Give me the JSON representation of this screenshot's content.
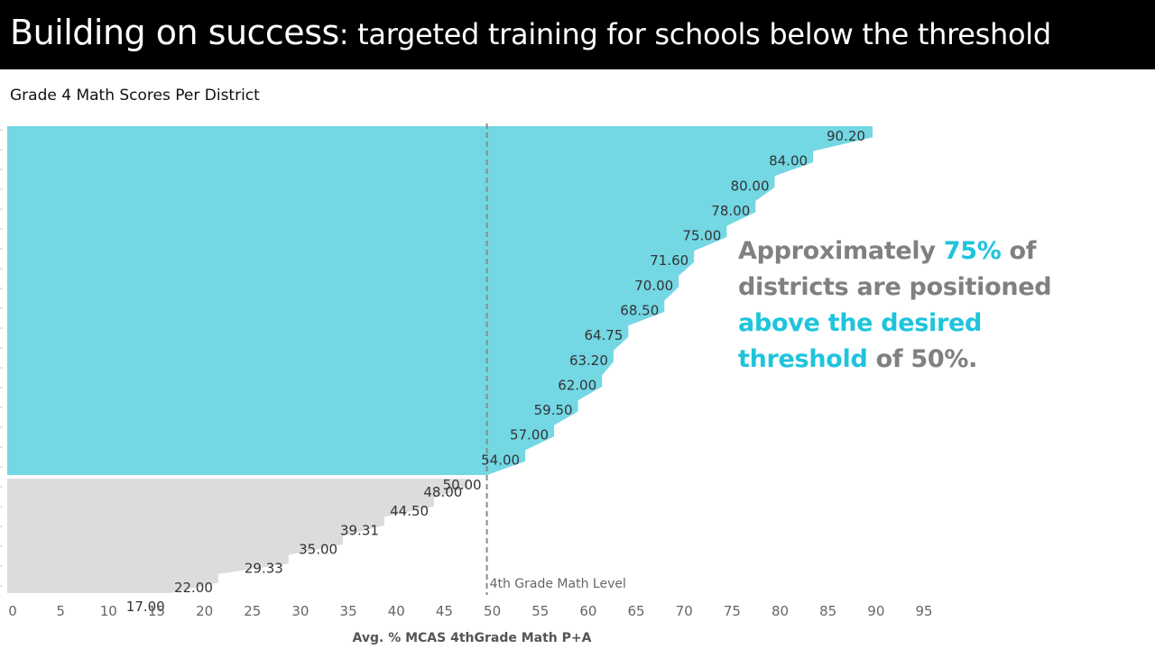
{
  "header": {
    "title_main": "Building on success",
    "title_sub": ": targeted training for schools below the threshold"
  },
  "chart_heading": "Grade 4 Math Scores Per District",
  "callout": {
    "part1": "Approximately ",
    "pct": "75%",
    "part2": " of districts are positioned ",
    "highlight": "above the desired threshold",
    "part3": " of 50%."
  },
  "colors": {
    "above": "#73d7e4",
    "below": "#dcdcdc",
    "accent": "#1fc4dc",
    "callout_text": "#808080"
  },
  "chart_data": {
    "type": "area",
    "orientation": "horizontal",
    "title": "Grade 4 Math Scores Per District",
    "xlabel": "Avg. % MCAS 4thGrade Math P+A",
    "xlim": [
      0,
      95
    ],
    "xticks": [
      0,
      5,
      10,
      15,
      20,
      25,
      30,
      35,
      40,
      45,
      50,
      55,
      60,
      65,
      70,
      75,
      80,
      85,
      90,
      95
    ],
    "reference_line": {
      "value": 50,
      "label": "4th Grade Math Level"
    },
    "sorted": "descending",
    "series": [
      {
        "group": "above threshold",
        "color": "#73d7e4",
        "labeled_values": [
          90.2,
          84.0,
          80.0,
          78.0,
          75.0,
          71.6,
          70.0,
          68.5,
          64.75,
          63.2,
          62.0,
          59.5,
          57.0,
          54.0,
          50.0
        ]
      },
      {
        "group": "below threshold",
        "color": "#dcdcdc",
        "labeled_values": [
          48.0,
          44.5,
          39.31,
          35.0,
          29.33,
          22.0,
          17.0
        ]
      }
    ],
    "labels": [
      "90.20",
      "84.00",
      "80.00",
      "78.00",
      "75.00",
      "71.60",
      "70.00",
      "68.50",
      "64.75",
      "63.20",
      "62.00",
      "59.50",
      "57.00",
      "54.00",
      "50.00",
      "48.00",
      "44.50",
      "39.31",
      "35.00",
      "29.33",
      "22.00",
      "17.00"
    ]
  }
}
